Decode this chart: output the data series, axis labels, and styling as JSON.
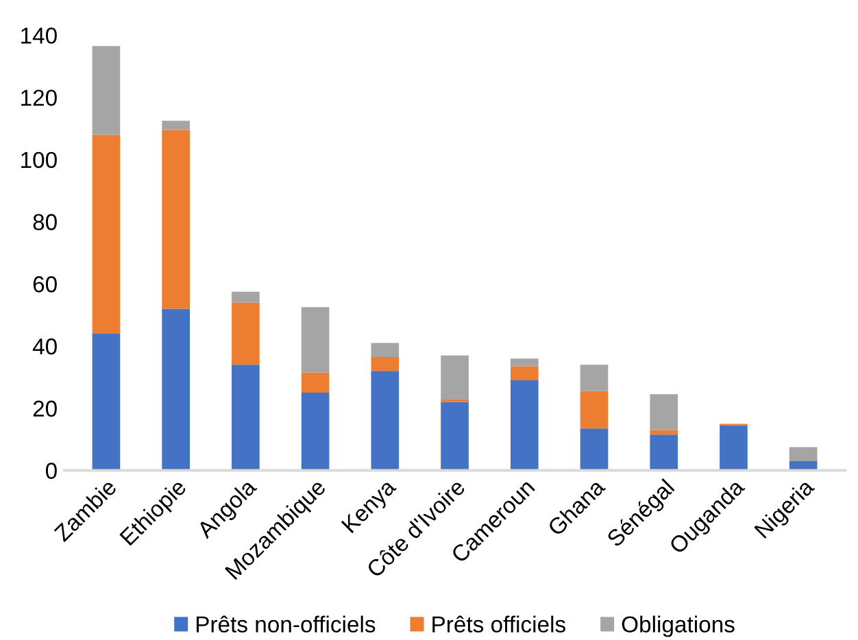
{
  "chart_data": {
    "type": "bar",
    "stacked": true,
    "categories": [
      "Zambie",
      "Ethiopie",
      "Angola",
      "Mozambique",
      "Kenya",
      "Côte d'Ivoire",
      "Cameroun",
      "Ghana",
      "Sénégal",
      "Ouganda",
      "Nigeria"
    ],
    "series": [
      {
        "name": "Prêts non-officiels",
        "color": "#4472c4",
        "values": [
          44,
          52,
          34,
          25,
          32,
          22,
          29,
          13.5,
          11.5,
          14.5,
          3
        ]
      },
      {
        "name": "Prêts officiels",
        "color": "#ed7d31",
        "values": [
          64,
          57.5,
          20,
          6.5,
          4.5,
          1,
          4.5,
          12,
          1.5,
          0.5,
          0
        ]
      },
      {
        "name": "Obligations",
        "color": "#a5a5a5",
        "values": [
          28.5,
          3,
          3.5,
          21,
          4.5,
          14,
          2.5,
          8.5,
          11.5,
          0,
          4.5
        ]
      }
    ],
    "ylim": [
      0,
      140
    ],
    "yticks": [
      0,
      20,
      40,
      60,
      80,
      100,
      120,
      140
    ],
    "grid": false,
    "legend": "bottom"
  }
}
